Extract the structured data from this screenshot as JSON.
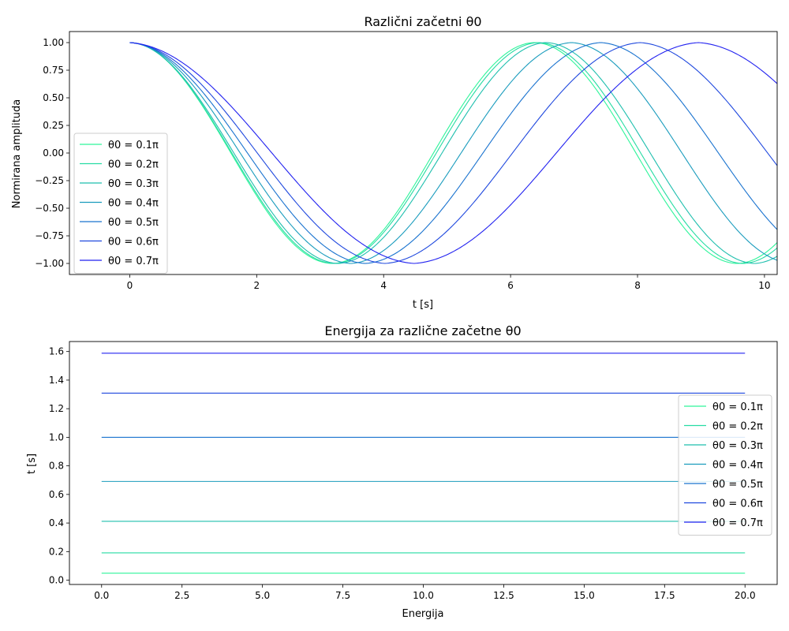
{
  "chart_data": [
    {
      "type": "line",
      "title": "Različni začetni θ0",
      "xlabel": "t [s]",
      "ylabel": "Normirana amplituda",
      "xlim": [
        -0.95,
        10.2
      ],
      "ylim": [
        -1.1,
        1.1
      ],
      "xticks": [
        0,
        2,
        4,
        6,
        8,
        10
      ],
      "xtick_labels": [
        "0",
        "2",
        "4",
        "6",
        "8",
        "10"
      ],
      "yticks": [
        1.0,
        0.75,
        0.5,
        0.25,
        0.0,
        -0.25,
        -0.5,
        -0.75,
        -1.0
      ],
      "ytick_labels": [
        "1.00",
        "0.75",
        "0.50",
        "0.25",
        "0.00",
        "−0.25",
        "−0.50",
        "−0.75",
        "−1.00"
      ],
      "x_range": [
        0,
        10.2
      ],
      "legend_position": "lower-left",
      "series": [
        {
          "name": "θ0 = 0.1π",
          "theta0_pi": 0.1,
          "period": 6.38,
          "color": "#2ef59a"
        },
        {
          "name": "θ0 = 0.2π",
          "theta0_pi": 0.2,
          "period": 6.44,
          "color": "#26dca3"
        },
        {
          "name": "θ0 = 0.3π",
          "theta0_pi": 0.3,
          "period": 6.56,
          "color": "#1fbfae"
        },
        {
          "name": "θ0 = 0.4π",
          "theta0_pi": 0.4,
          "period": 6.96,
          "color": "#1a9cbd"
        },
        {
          "name": "θ0 = 0.5π",
          "theta0_pi": 0.5,
          "period": 7.42,
          "color": "#1a73cf"
        },
        {
          "name": "θ0 = 0.6π",
          "theta0_pi": 0.6,
          "period": 8.04,
          "color": "#1f48de"
        },
        {
          "name": "θ0 = 0.7π",
          "theta0_pi": 0.7,
          "period": 8.96,
          "color": "#2222f0"
        }
      ]
    },
    {
      "type": "line",
      "title": "Energija za različne začetne θ0",
      "xlabel": "Energija",
      "ylabel": "t [s]",
      "xlim": [
        -1.0,
        21.0
      ],
      "ylim": [
        -0.03,
        1.67
      ],
      "xticks": [
        0,
        2.5,
        5,
        7.5,
        10,
        12.5,
        15,
        17.5,
        20
      ],
      "xtick_labels": [
        "0.0",
        "2.5",
        "5.0",
        "7.5",
        "10.0",
        "12.5",
        "15.0",
        "17.5",
        "20.0"
      ],
      "yticks": [
        0,
        0.2,
        0.4,
        0.6,
        0.8,
        1.0,
        1.2,
        1.4,
        1.6
      ],
      "ytick_labels": [
        "0.0",
        "0.2",
        "0.4",
        "0.6",
        "0.8",
        "1.0",
        "1.2",
        "1.4",
        "1.6"
      ],
      "legend_position": "right",
      "series": [
        {
          "name": "θ0 = 0.1π",
          "x": [
            0,
            20
          ],
          "y": [
            0.049,
            0.049
          ],
          "color": "#2ef59a"
        },
        {
          "name": "θ0 = 0.2π",
          "x": [
            0,
            20
          ],
          "y": [
            0.191,
            0.191
          ],
          "color": "#26dca3"
        },
        {
          "name": "θ0 = 0.3π",
          "x": [
            0,
            20
          ],
          "y": [
            0.412,
            0.412
          ],
          "color": "#1fbfae"
        },
        {
          "name": "θ0 = 0.4π",
          "x": [
            0,
            20
          ],
          "y": [
            0.691,
            0.691
          ],
          "color": "#1a9cbd"
        },
        {
          "name": "θ0 = 0.5π",
          "x": [
            0,
            20
          ],
          "y": [
            1.0,
            1.0
          ],
          "color": "#1a73cf"
        },
        {
          "name": "θ0 = 0.6π",
          "x": [
            0,
            20
          ],
          "y": [
            1.309,
            1.309
          ],
          "color": "#1f48de"
        },
        {
          "name": "θ0 = 0.7π",
          "x": [
            0,
            20
          ],
          "y": [
            1.588,
            1.588
          ],
          "color": "#2222f0"
        }
      ]
    }
  ]
}
